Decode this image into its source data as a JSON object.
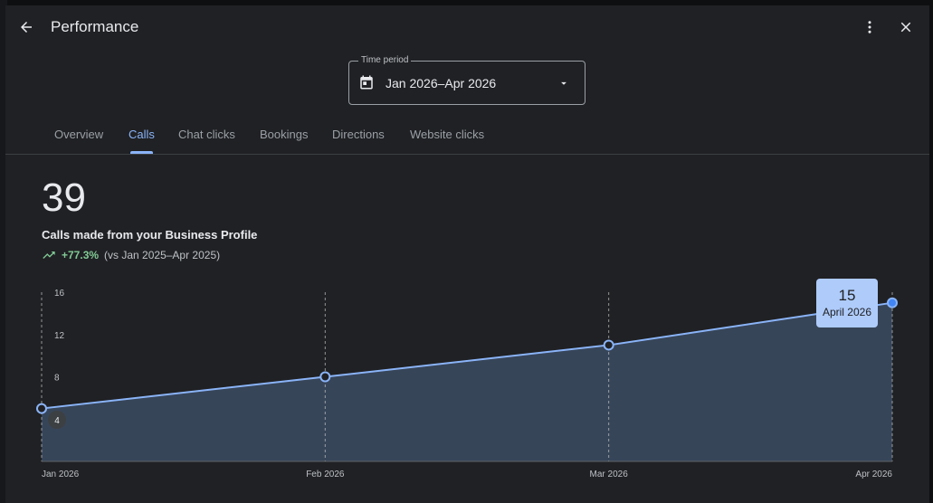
{
  "header": {
    "title": "Performance",
    "icons": {
      "back": "arrow-back-icon",
      "menu": "more-vert-icon",
      "close": "close-icon"
    }
  },
  "time_period": {
    "label": "Time period",
    "value": "Jan 2026–Apr 2026",
    "icon": "calendar-icon"
  },
  "tabs": [
    "Overview",
    "Calls",
    "Chat clicks",
    "Bookings",
    "Directions",
    "Website clicks"
  ],
  "active_tab": "Calls",
  "metric": {
    "value": "39",
    "label": "Calls made from your Business Profile",
    "change": "+77.3%",
    "comparison": "(vs Jan 2025–Apr 2025)"
  },
  "chart_data": {
    "type": "area",
    "x": [
      "Jan 2026",
      "Feb 2026",
      "Mar 2026",
      "Apr 2026"
    ],
    "y_ticks": [
      "16",
      "12",
      "8",
      "4"
    ],
    "ylim": [
      0,
      16
    ],
    "series": [
      {
        "values": [
          5,
          8,
          11,
          15
        ]
      }
    ],
    "tooltip": {
      "value": "15",
      "month": "April 2026"
    },
    "start_badge": "4",
    "colors": {
      "line": "#8ab4f8",
      "fill": "#3c4b63",
      "point_fill": "#202124",
      "highlight": "#4285f4"
    }
  }
}
